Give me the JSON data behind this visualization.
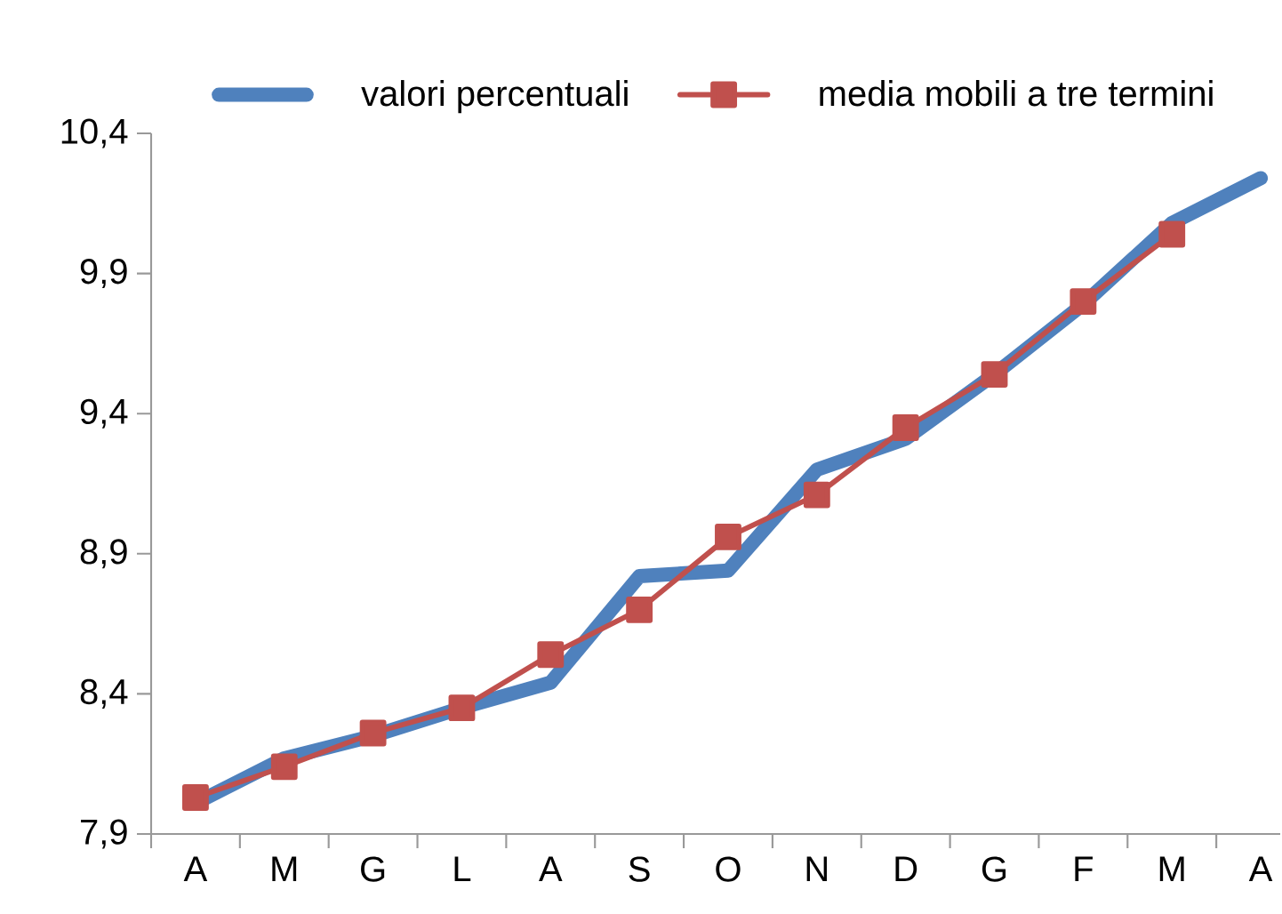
{
  "chart_data": {
    "type": "line",
    "categories": [
      "A",
      "M",
      "G",
      "L",
      "A",
      "S",
      "O",
      "N",
      "D",
      "G",
      "F",
      "M",
      "A"
    ],
    "series": [
      {
        "name": "valori percentuali",
        "color": "#4f81bd",
        "marker": "none",
        "values": [
          8.01,
          8.17,
          8.25,
          8.35,
          8.44,
          8.82,
          8.84,
          9.2,
          9.31,
          9.54,
          9.79,
          10.08,
          10.24
        ]
      },
      {
        "name": "media mobili a tre termini",
        "color": "#c0504d",
        "marker": "square",
        "values": [
          8.03,
          8.14,
          8.26,
          8.35,
          8.54,
          8.7,
          8.96,
          9.11,
          9.35,
          9.54,
          9.8,
          10.04,
          null
        ]
      }
    ],
    "ylim": [
      7.9,
      10.4
    ],
    "yticks": [
      {
        "value": 7.9,
        "label": "7,9"
      },
      {
        "value": 8.4,
        "label": "8,4"
      },
      {
        "value": 8.9,
        "label": "8,9"
      },
      {
        "value": 9.4,
        "label": "9,4"
      },
      {
        "value": 9.9,
        "label": "9,9"
      },
      {
        "value": 10.4,
        "label": "10,4"
      }
    ],
    "grid": false,
    "legend": "top"
  }
}
